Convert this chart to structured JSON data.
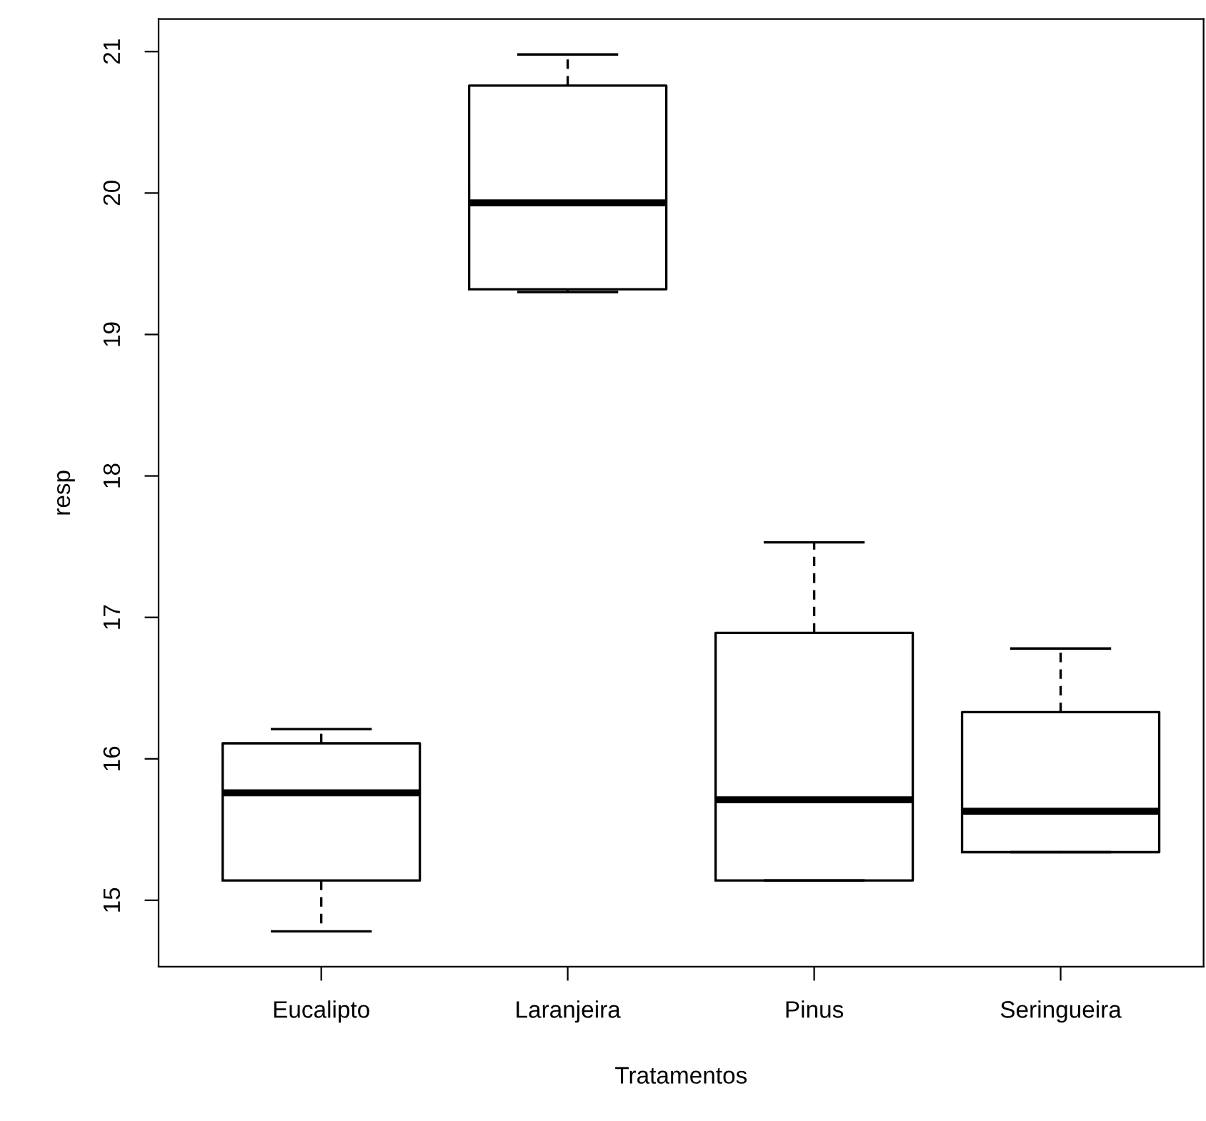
{
  "chart_data": {
    "type": "box",
    "xlabel": "Tratamentos",
    "ylabel": "resp",
    "categories": [
      "Eucalipto",
      "Laranjeira",
      "Pinus",
      "Seringueira"
    ],
    "boxes": [
      {
        "low": 14.78,
        "q1": 15.14,
        "median": 15.76,
        "q3": 16.11,
        "high": 16.21
      },
      {
        "low": 19.3,
        "q1": 19.32,
        "median": 19.93,
        "q3": 20.76,
        "high": 20.98
      },
      {
        "low": 15.14,
        "q1": 15.14,
        "median": 15.71,
        "q3": 16.89,
        "high": 17.53
      },
      {
        "low": 15.34,
        "q1": 15.34,
        "median": 15.63,
        "q3": 16.33,
        "high": 16.78
      }
    ],
    "ylim": [
      14.53,
      21.23
    ],
    "yticks": [
      15,
      16,
      17,
      18,
      19,
      20,
      21
    ],
    "grid": false
  }
}
